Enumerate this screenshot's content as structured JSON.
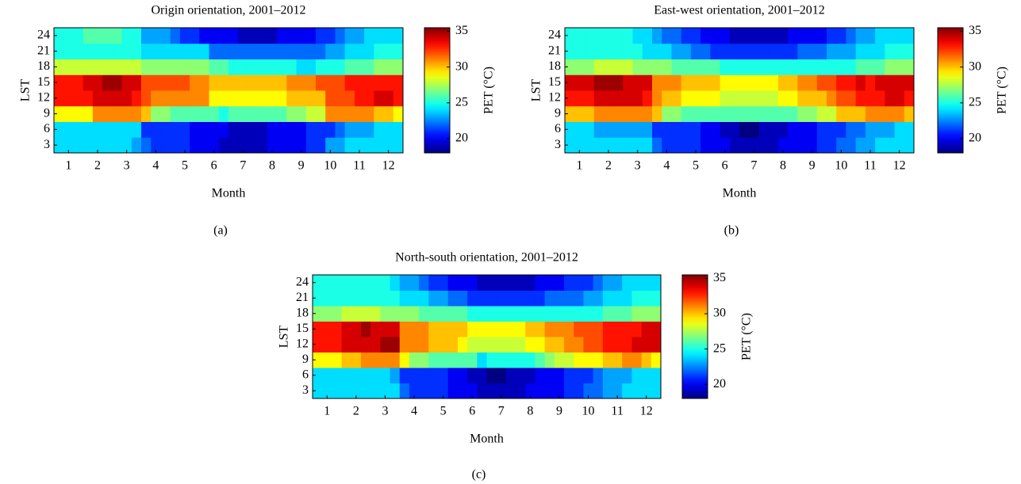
{
  "chart_data": [
    {
      "type": "heatmap",
      "title": "Origin orientation, 2001–2012",
      "x_label": "Month",
      "y_label": "LST",
      "colorbar_label": "PET (°C)",
      "panel_label": "(a)",
      "colormap": "jet",
      "xlim": [
        0.5,
        12.5
      ],
      "xticks": [
        1,
        2,
        3,
        4,
        5,
        6,
        7,
        8,
        9,
        10,
        11,
        12
      ],
      "y": [
        3,
        6,
        9,
        12,
        15,
        18,
        21,
        24
      ],
      "ylim": [
        1.5,
        25.5
      ],
      "yticks": [
        3,
        6,
        9,
        12,
        15,
        18,
        21,
        24
      ],
      "zlim": [
        18,
        35.5
      ],
      "zticks": [
        20,
        25,
        30,
        35
      ],
      "values": [
        [
          24,
          24,
          24,
          24,
          24,
          24,
          24,
          24,
          23,
          22,
          21,
          21,
          21,
          21,
          20,
          20,
          20,
          19,
          19,
          19,
          19,
          19,
          20,
          20,
          20,
          20,
          21,
          21,
          23,
          23,
          24,
          24,
          24,
          24,
          24,
          24
        ],
        [
          24,
          24,
          24,
          24,
          24,
          24,
          24,
          24,
          24,
          21,
          21,
          21,
          21,
          21,
          20,
          20,
          20,
          20,
          19,
          19,
          19,
          19,
          20,
          20,
          20,
          20,
          21,
          21,
          21,
          22,
          23,
          23,
          23,
          24,
          24,
          24
        ],
        [
          29,
          29,
          29,
          29,
          31,
          31,
          31,
          31,
          31,
          30,
          27,
          27,
          26,
          26,
          26,
          26,
          26,
          25,
          26,
          26,
          26,
          26,
          26,
          26,
          27,
          27,
          28,
          28,
          31,
          31,
          31,
          31,
          31,
          30,
          30,
          29
        ],
        [
          33,
          33,
          33,
          33,
          34,
          34,
          34,
          34,
          33,
          32,
          31,
          31,
          31,
          31,
          31,
          31,
          29,
          29,
          29,
          29,
          29,
          29,
          29,
          29,
          30,
          30,
          30,
          30,
          32,
          32,
          32,
          33,
          33,
          34,
          34,
          33
        ],
        [
          33,
          33,
          33,
          34,
          34,
          35,
          35,
          34,
          34,
          32,
          32,
          32,
          32,
          32,
          31,
          31,
          30,
          30,
          30,
          30,
          30,
          30,
          30,
          30,
          31,
          31,
          31,
          32,
          32,
          32,
          33,
          33,
          33,
          33,
          33,
          33
        ],
        [
          28,
          28,
          28,
          28,
          28,
          28,
          28,
          28,
          28,
          27,
          27,
          27,
          27,
          27,
          27,
          27,
          26,
          26,
          25,
          25,
          25,
          25,
          25,
          25,
          25,
          24,
          24,
          25,
          25,
          25,
          26,
          26,
          26,
          27,
          27,
          27
        ],
        [
          25,
          25,
          25,
          25,
          25,
          25,
          25,
          25,
          25,
          24,
          24,
          24,
          24,
          24,
          24,
          24,
          22,
          22,
          22,
          22,
          22,
          22,
          22,
          22,
          22,
          22,
          22,
          22,
          23,
          23,
          24,
          24,
          24,
          25,
          25,
          25
        ],
        [
          25,
          25,
          25,
          26,
          26,
          26,
          26,
          25,
          25,
          23,
          23,
          23,
          22,
          21,
          21,
          20,
          20,
          20,
          20,
          19,
          19,
          19,
          19,
          20,
          20,
          20,
          20,
          21,
          21,
          22,
          23,
          23,
          24,
          24,
          24,
          24
        ]
      ]
    },
    {
      "type": "heatmap",
      "title": "East-west orientation, 2001–2012",
      "x_label": "Month",
      "y_label": "LST",
      "colorbar_label": "PET (°C)",
      "panel_label": "(b)",
      "colormap": "jet",
      "xlim": [
        0.5,
        12.5
      ],
      "xticks": [
        1,
        2,
        3,
        4,
        5,
        6,
        7,
        8,
        9,
        10,
        11,
        12
      ],
      "y": [
        3,
        6,
        9,
        12,
        15,
        18,
        21,
        24
      ],
      "ylim": [
        1.5,
        25.5
      ],
      "yticks": [
        3,
        6,
        9,
        12,
        15,
        18,
        21,
        24
      ],
      "zlim": [
        18,
        35.5
      ],
      "zticks": [
        20,
        25,
        30,
        35
      ],
      "values": [
        [
          24,
          24,
          24,
          24,
          24,
          24,
          24,
          24,
          24,
          22,
          21,
          21,
          21,
          21,
          20,
          20,
          20,
          19,
          19,
          19,
          19,
          19,
          20,
          20,
          20,
          20,
          21,
          21,
          22,
          22,
          23,
          23,
          24,
          24,
          24,
          24
        ],
        [
          24,
          24,
          24,
          23,
          23,
          23,
          23,
          23,
          23,
          21,
          21,
          21,
          21,
          21,
          20,
          20,
          19,
          19,
          18,
          18,
          19,
          19,
          19,
          20,
          20,
          20,
          21,
          21,
          21,
          22,
          22,
          23,
          23,
          23,
          24,
          24
        ],
        [
          30,
          30,
          30,
          31,
          31,
          31,
          31,
          31,
          31,
          30,
          27,
          27,
          26,
          26,
          26,
          26,
          26,
          26,
          26,
          26,
          26,
          26,
          26,
          26,
          27,
          27,
          28,
          28,
          30,
          30,
          30,
          31,
          31,
          31,
          31,
          30
        ],
        [
          33,
          33,
          33,
          34,
          34,
          34,
          34,
          34,
          33,
          31,
          30,
          30,
          29,
          29,
          29,
          29,
          28,
          28,
          28,
          28,
          28,
          28,
          29,
          29,
          30,
          30,
          30,
          31,
          32,
          32,
          33,
          33,
          33,
          34,
          34,
          33
        ],
        [
          34,
          34,
          34,
          35,
          35,
          35,
          34,
          34,
          34,
          31,
          31,
          31,
          30,
          30,
          30,
          30,
          29,
          29,
          29,
          29,
          29,
          29,
          30,
          30,
          31,
          31,
          32,
          32,
          33,
          33,
          34,
          33,
          34,
          34,
          34,
          34
        ],
        [
          27,
          27,
          27,
          28,
          28,
          28,
          28,
          27,
          27,
          27,
          27,
          26,
          26,
          26,
          26,
          26,
          25,
          25,
          25,
          25,
          25,
          25,
          25,
          25,
          25,
          25,
          25,
          25,
          25,
          25,
          26,
          26,
          26,
          27,
          27,
          27
        ],
        [
          25,
          25,
          25,
          25,
          25,
          25,
          25,
          25,
          24,
          24,
          24,
          23,
          23,
          22,
          22,
          21,
          21,
          21,
          21,
          21,
          21,
          21,
          21,
          21,
          22,
          22,
          22,
          23,
          23,
          23,
          24,
          24,
          24,
          25,
          25,
          25
        ],
        [
          25,
          25,
          25,
          25,
          25,
          25,
          25,
          24,
          24,
          23,
          22,
          22,
          21,
          21,
          20,
          20,
          20,
          19,
          19,
          19,
          19,
          19,
          19,
          20,
          20,
          20,
          20,
          21,
          21,
          22,
          23,
          23,
          24,
          24,
          24,
          24
        ]
      ]
    },
    {
      "type": "heatmap",
      "title": "North-south orientation, 2001–2012",
      "x_label": "Month",
      "y_label": "LST",
      "colorbar_label": "PET (°C)",
      "panel_label": "(c)",
      "colormap": "jet",
      "xlim": [
        0.5,
        12.5
      ],
      "xticks": [
        1,
        2,
        3,
        4,
        5,
        6,
        7,
        8,
        9,
        10,
        11,
        12
      ],
      "y": [
        3,
        6,
        9,
        12,
        15,
        18,
        21,
        24
      ],
      "ylim": [
        1.5,
        25.5
      ],
      "yticks": [
        3,
        6,
        9,
        12,
        15,
        18,
        21,
        24
      ],
      "zlim": [
        18,
        35.5
      ],
      "zticks": [
        20,
        25,
        30,
        35
      ],
      "values": [
        [
          24,
          24,
          24,
          24,
          24,
          24,
          24,
          24,
          24,
          22,
          21,
          21,
          21,
          21,
          20,
          20,
          20,
          19,
          19,
          19,
          19,
          19,
          20,
          20,
          20,
          20,
          21,
          21,
          22,
          22,
          23,
          23,
          24,
          24,
          24,
          24
        ],
        [
          24,
          24,
          24,
          24,
          24,
          24,
          24,
          24,
          23,
          21,
          21,
          21,
          21,
          21,
          20,
          20,
          19,
          19,
          18,
          18,
          19,
          19,
          19,
          20,
          20,
          20,
          21,
          21,
          21,
          22,
          23,
          23,
          23,
          24,
          24,
          24
        ],
        [
          29,
          29,
          29,
          30,
          30,
          31,
          31,
          31,
          31,
          29,
          27,
          27,
          26,
          26,
          26,
          26,
          26,
          24,
          25,
          25,
          25,
          25,
          25,
          26,
          27,
          28,
          28,
          29,
          29,
          29,
          30,
          30,
          31,
          31,
          30,
          29
        ],
        [
          33,
          33,
          33,
          34,
          34,
          34,
          34,
          35,
          35,
          31,
          31,
          31,
          30,
          30,
          30,
          29,
          28,
          28,
          28,
          28,
          28,
          28,
          29,
          29,
          30,
          30,
          31,
          31,
          32,
          32,
          33,
          33,
          33,
          34,
          34,
          34
        ],
        [
          33,
          33,
          33,
          34,
          34,
          35,
          34,
          34,
          34,
          31,
          31,
          31,
          30,
          30,
          30,
          30,
          29,
          29,
          29,
          29,
          29,
          29,
          30,
          30,
          31,
          31,
          31,
          32,
          32,
          32,
          33,
          33,
          33,
          33,
          34,
          34
        ],
        [
          27,
          27,
          27,
          28,
          28,
          28,
          28,
          27,
          27,
          27,
          27,
          26,
          26,
          26,
          26,
          26,
          25,
          25,
          25,
          25,
          25,
          25,
          25,
          25,
          25,
          25,
          25,
          25,
          25,
          25,
          26,
          26,
          26,
          27,
          27,
          27
        ],
        [
          25,
          25,
          25,
          25,
          25,
          25,
          25,
          25,
          25,
          24,
          24,
          24,
          23,
          23,
          22,
          22,
          21,
          21,
          21,
          21,
          21,
          21,
          21,
          21,
          22,
          22,
          22,
          22,
          23,
          23,
          24,
          24,
          24,
          25,
          25,
          25
        ],
        [
          25,
          25,
          25,
          25,
          25,
          25,
          25,
          25,
          24,
          23,
          23,
          22,
          21,
          21,
          20,
          20,
          20,
          19,
          19,
          19,
          19,
          19,
          19,
          20,
          20,
          20,
          21,
          21,
          21,
          22,
          23,
          23,
          24,
          24,
          24,
          24
        ]
      ]
    }
  ]
}
